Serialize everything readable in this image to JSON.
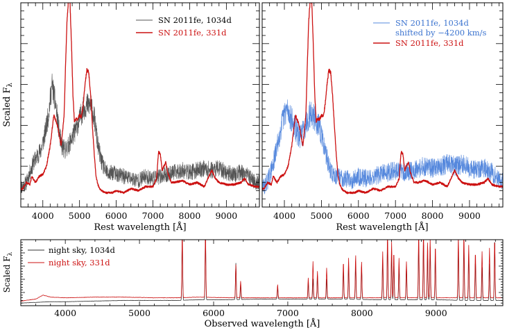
{
  "chart_data": [
    {
      "type": "line",
      "panel": "top-left",
      "xlabel": "Rest wavelength [Å]",
      "ylabel": "Scaled F",
      "ylabel_subscript": "λ",
      "xlim": [
        3400,
        9900
      ],
      "ylim": [
        0,
        1
      ],
      "x_ticks": [
        4000,
        5000,
        6000,
        7000,
        8000,
        9000
      ],
      "x_tick_labels": [
        "4000",
        "5000",
        "6000",
        "7000",
        "8000",
        "9000"
      ],
      "legend_position": "top-right",
      "series": [
        {
          "name": "SN 2011fe, 1034d",
          "color": "#555555",
          "noise": 0.06,
          "width": 0.6,
          "x": [
            3450,
            3550,
            3650,
            3750,
            3850,
            3950,
            4050,
            4150,
            4250,
            4350,
            4420,
            4500,
            4600,
            4700,
            4800,
            4900,
            5000,
            5100,
            5200,
            5300,
            5400,
            5500,
            5600,
            5700,
            5800,
            5900,
            6000,
            6200,
            6400,
            6600,
            6800,
            7000,
            7200,
            7400,
            7600,
            7800,
            8000,
            8200,
            8400,
            8600,
            8800,
            9000,
            9200,
            9400,
            9600,
            9800
          ],
          "y": [
            0.1,
            0.12,
            0.17,
            0.22,
            0.25,
            0.28,
            0.35,
            0.45,
            0.6,
            0.5,
            0.4,
            0.3,
            0.28,
            0.3,
            0.34,
            0.38,
            0.43,
            0.48,
            0.5,
            0.5,
            0.44,
            0.3,
            0.22,
            0.18,
            0.16,
            0.17,
            0.16,
            0.15,
            0.14,
            0.13,
            0.15,
            0.14,
            0.15,
            0.16,
            0.17,
            0.18,
            0.17,
            0.18,
            0.19,
            0.18,
            0.19,
            0.17,
            0.16,
            0.17,
            0.15,
            0.12
          ]
        },
        {
          "name": "SN 2011fe, 331d",
          "color": "#cc1111",
          "noise": 0.008,
          "width": 1.3,
          "x": [
            3450,
            3550,
            3650,
            3700,
            3800,
            3900,
            4000,
            4100,
            4200,
            4300,
            4400,
            4500,
            4580,
            4620,
            4660,
            4700,
            4740,
            4780,
            4820,
            4860,
            4900,
            4950,
            5000,
            5050,
            5100,
            5150,
            5200,
            5250,
            5300,
            5350,
            5400,
            5450,
            5500,
            5550,
            5600,
            5700,
            5800,
            5900,
            6000,
            6200,
            6400,
            6600,
            6800,
            7000,
            7100,
            7150,
            7200,
            7250,
            7300,
            7350,
            7400,
            7500,
            7600,
            7800,
            8000,
            8200,
            8400,
            8500,
            8600,
            8700,
            8800,
            9000,
            9200,
            9400,
            9500,
            9600,
            9800
          ],
          "y": [
            0.09,
            0.12,
            0.11,
            0.15,
            0.12,
            0.15,
            0.16,
            0.2,
            0.3,
            0.45,
            0.4,
            0.3,
            0.45,
            0.7,
            0.92,
            1.02,
            1.0,
            0.8,
            0.55,
            0.42,
            0.43,
            0.43,
            0.45,
            0.44,
            0.5,
            0.6,
            0.67,
            0.66,
            0.55,
            0.4,
            0.26,
            0.15,
            0.11,
            0.09,
            0.08,
            0.07,
            0.07,
            0.07,
            0.08,
            0.07,
            0.09,
            0.08,
            0.1,
            0.1,
            0.14,
            0.27,
            0.26,
            0.18,
            0.2,
            0.22,
            0.17,
            0.12,
            0.12,
            0.13,
            0.11,
            0.12,
            0.1,
            0.14,
            0.18,
            0.14,
            0.12,
            0.11,
            0.11,
            0.12,
            0.14,
            0.11,
            0.1
          ]
        }
      ]
    },
    {
      "type": "line",
      "panel": "top-right",
      "xlabel": "Rest wavelength [Å]",
      "xlim": [
        3400,
        9900
      ],
      "ylim": [
        0,
        1
      ],
      "x_ticks": [
        4000,
        5000,
        6000,
        7000,
        8000,
        9000
      ],
      "x_tick_labels": [
        "4000",
        "5000",
        "6000",
        "7000",
        "8000",
        "9000"
      ],
      "legend_position": "top-right",
      "series": [
        {
          "name": "SN 2011fe, 1034d",
          "name_line2": "shifted by −4200 km/s",
          "color": "#5588dd",
          "noise": 0.07,
          "width": 0.6,
          "x": [
            3450,
            3550,
            3650,
            3750,
            3850,
            3950,
            4050,
            4150,
            4250,
            4350,
            4420,
            4500,
            4600,
            4700,
            4800,
            4900,
            5000,
            5100,
            5200,
            5300,
            5400,
            5500,
            5600,
            5700,
            5800,
            5900,
            6000,
            6200,
            6400,
            6600,
            6800,
            7000,
            7200,
            7400,
            7600,
            7800,
            8000,
            8200,
            8400,
            8600,
            8800,
            9000,
            9200,
            9400,
            9600,
            9800
          ],
          "y": [
            0.1,
            0.13,
            0.18,
            0.25,
            0.34,
            0.42,
            0.48,
            0.45,
            0.4,
            0.36,
            0.34,
            0.37,
            0.42,
            0.46,
            0.44,
            0.41,
            0.35,
            0.28,
            0.2,
            0.16,
            0.15,
            0.15,
            0.14,
            0.14,
            0.13,
            0.14,
            0.15,
            0.14,
            0.15,
            0.16,
            0.17,
            0.18,
            0.17,
            0.18,
            0.19,
            0.2,
            0.19,
            0.2,
            0.21,
            0.2,
            0.21,
            0.19,
            0.18,
            0.19,
            0.17,
            0.13
          ]
        },
        {
          "name": "SN 2011fe, 331d",
          "color": "#cc1111",
          "noise": 0.008,
          "width": 1.3,
          "x": [
            3450,
            3550,
            3650,
            3700,
            3800,
            3900,
            4000,
            4100,
            4200,
            4300,
            4400,
            4500,
            4580,
            4620,
            4660,
            4700,
            4740,
            4780,
            4820,
            4860,
            4900,
            4950,
            5000,
            5050,
            5100,
            5150,
            5200,
            5250,
            5300,
            5350,
            5400,
            5450,
            5500,
            5550,
            5600,
            5700,
            5800,
            5900,
            6000,
            6200,
            6400,
            6600,
            6800,
            7000,
            7100,
            7150,
            7200,
            7250,
            7300,
            7350,
            7400,
            7500,
            7600,
            7800,
            8000,
            8200,
            8400,
            8500,
            8600,
            8700,
            8800,
            9000,
            9200,
            9400,
            9500,
            9600,
            9800
          ],
          "y": [
            0.09,
            0.12,
            0.11,
            0.15,
            0.12,
            0.15,
            0.16,
            0.2,
            0.3,
            0.45,
            0.4,
            0.3,
            0.45,
            0.7,
            0.92,
            1.02,
            1.0,
            0.8,
            0.55,
            0.42,
            0.43,
            0.43,
            0.45,
            0.44,
            0.5,
            0.6,
            0.67,
            0.66,
            0.55,
            0.4,
            0.26,
            0.15,
            0.11,
            0.09,
            0.08,
            0.07,
            0.07,
            0.07,
            0.08,
            0.07,
            0.09,
            0.08,
            0.1,
            0.1,
            0.14,
            0.27,
            0.26,
            0.18,
            0.2,
            0.22,
            0.17,
            0.12,
            0.12,
            0.13,
            0.11,
            0.12,
            0.1,
            0.14,
            0.18,
            0.14,
            0.12,
            0.11,
            0.11,
            0.12,
            0.14,
            0.11,
            0.1
          ]
        }
      ]
    },
    {
      "type": "line",
      "panel": "bottom",
      "xlabel": "Observed wavelength [Å]",
      "ylabel": "Scaled F",
      "ylabel_subscript": "λ",
      "xlim": [
        3400,
        9900
      ],
      "ylim": [
        0,
        1
      ],
      "x_ticks": [
        4000,
        5000,
        6000,
        7000,
        8000,
        9000
      ],
      "x_tick_labels": [
        "4000",
        "5000",
        "6000",
        "7000",
        "8000",
        "9000"
      ],
      "legend_position": "top-left",
      "series": [
        {
          "name": "night sky, 1034d",
          "color": "#333333",
          "noise": 0.004,
          "width": 0.8,
          "x": [
            3400,
            3600,
            3800,
            4000,
            4400,
            4800,
            5200,
            5500,
            5800,
            6200,
            6600,
            7000,
            7200,
            7400,
            7800,
            8200,
            8600,
            9000,
            9400,
            9800,
            9900
          ],
          "y": [
            0.04,
            0.05,
            0.06,
            0.06,
            0.07,
            0.08,
            0.08,
            0.08,
            0.09,
            0.09,
            0.1,
            0.1,
            0.1,
            0.1,
            0.1,
            0.09,
            0.09,
            0.09,
            0.08,
            0.08,
            0.08
          ],
          "lines": [
            [
              5577,
              1.0
            ],
            [
              5890,
              1.0
            ],
            [
              6300,
              0.55
            ],
            [
              6364,
              0.22
            ],
            [
              6863,
              0.18
            ],
            [
              7276,
              0.25
            ],
            [
              7340,
              0.3
            ],
            [
              7400,
              0.35
            ],
            [
              7524,
              0.3
            ],
            [
              7750,
              0.45
            ],
            [
              7820,
              0.5
            ],
            [
              7915,
              0.55
            ],
            [
              7995,
              0.5
            ],
            [
              8280,
              0.6
            ],
            [
              8345,
              0.9
            ],
            [
              8400,
              0.7
            ],
            [
              8430,
              0.55
            ],
            [
              8500,
              0.5
            ],
            [
              8600,
              0.5
            ],
            [
              8765,
              0.85
            ],
            [
              8830,
              0.9
            ],
            [
              8885,
              0.7
            ],
            [
              8920,
              0.8
            ],
            [
              8990,
              0.7
            ],
            [
              9300,
              0.8
            ],
            [
              9375,
              0.85
            ],
            [
              9440,
              0.7
            ],
            [
              9530,
              0.6
            ],
            [
              9620,
              0.5
            ],
            [
              9720,
              0.55
            ],
            [
              9790,
              0.95
            ]
          ]
        },
        {
          "name": "night sky, 331d",
          "color": "#cc1111",
          "noise": 0.005,
          "width": 0.8,
          "x": [
            3400,
            3600,
            3700,
            3800,
            4000,
            4400,
            4800,
            5200,
            5500,
            5800,
            6200,
            6600,
            7000,
            7200,
            7400,
            7800,
            8200,
            8600,
            9000,
            9400,
            9800,
            9900
          ],
          "y": [
            0.07,
            0.1,
            0.16,
            0.13,
            0.12,
            0.13,
            0.13,
            0.12,
            0.12,
            0.13,
            0.12,
            0.12,
            0.12,
            0.12,
            0.12,
            0.12,
            0.12,
            0.12,
            0.12,
            0.12,
            0.12,
            0.12
          ],
          "lines": [
            [
              5577,
              1.0
            ],
            [
              5890,
              1.0
            ],
            [
              6300,
              0.5
            ],
            [
              6364,
              0.25
            ],
            [
              6863,
              0.2
            ],
            [
              7276,
              0.3
            ],
            [
              7340,
              0.55
            ],
            [
              7400,
              0.4
            ],
            [
              7524,
              0.45
            ],
            [
              7750,
              0.55
            ],
            [
              7820,
              0.6
            ],
            [
              7915,
              0.65
            ],
            [
              7995,
              0.55
            ],
            [
              8280,
              0.7
            ],
            [
              8345,
              1.0
            ],
            [
              8400,
              0.85
            ],
            [
              8430,
              0.7
            ],
            [
              8500,
              0.6
            ],
            [
              8600,
              0.55
            ],
            [
              8765,
              1.0
            ],
            [
              8830,
              1.0
            ],
            [
              8885,
              0.85
            ],
            [
              8920,
              0.9
            ],
            [
              8990,
              0.8
            ],
            [
              9300,
              0.95
            ],
            [
              9375,
              1.0
            ],
            [
              9440,
              0.8
            ],
            [
              9530,
              0.7
            ],
            [
              9620,
              0.7
            ],
            [
              9720,
              0.75
            ],
            [
              9790,
              0.9
            ]
          ]
        }
      ]
    }
  ]
}
